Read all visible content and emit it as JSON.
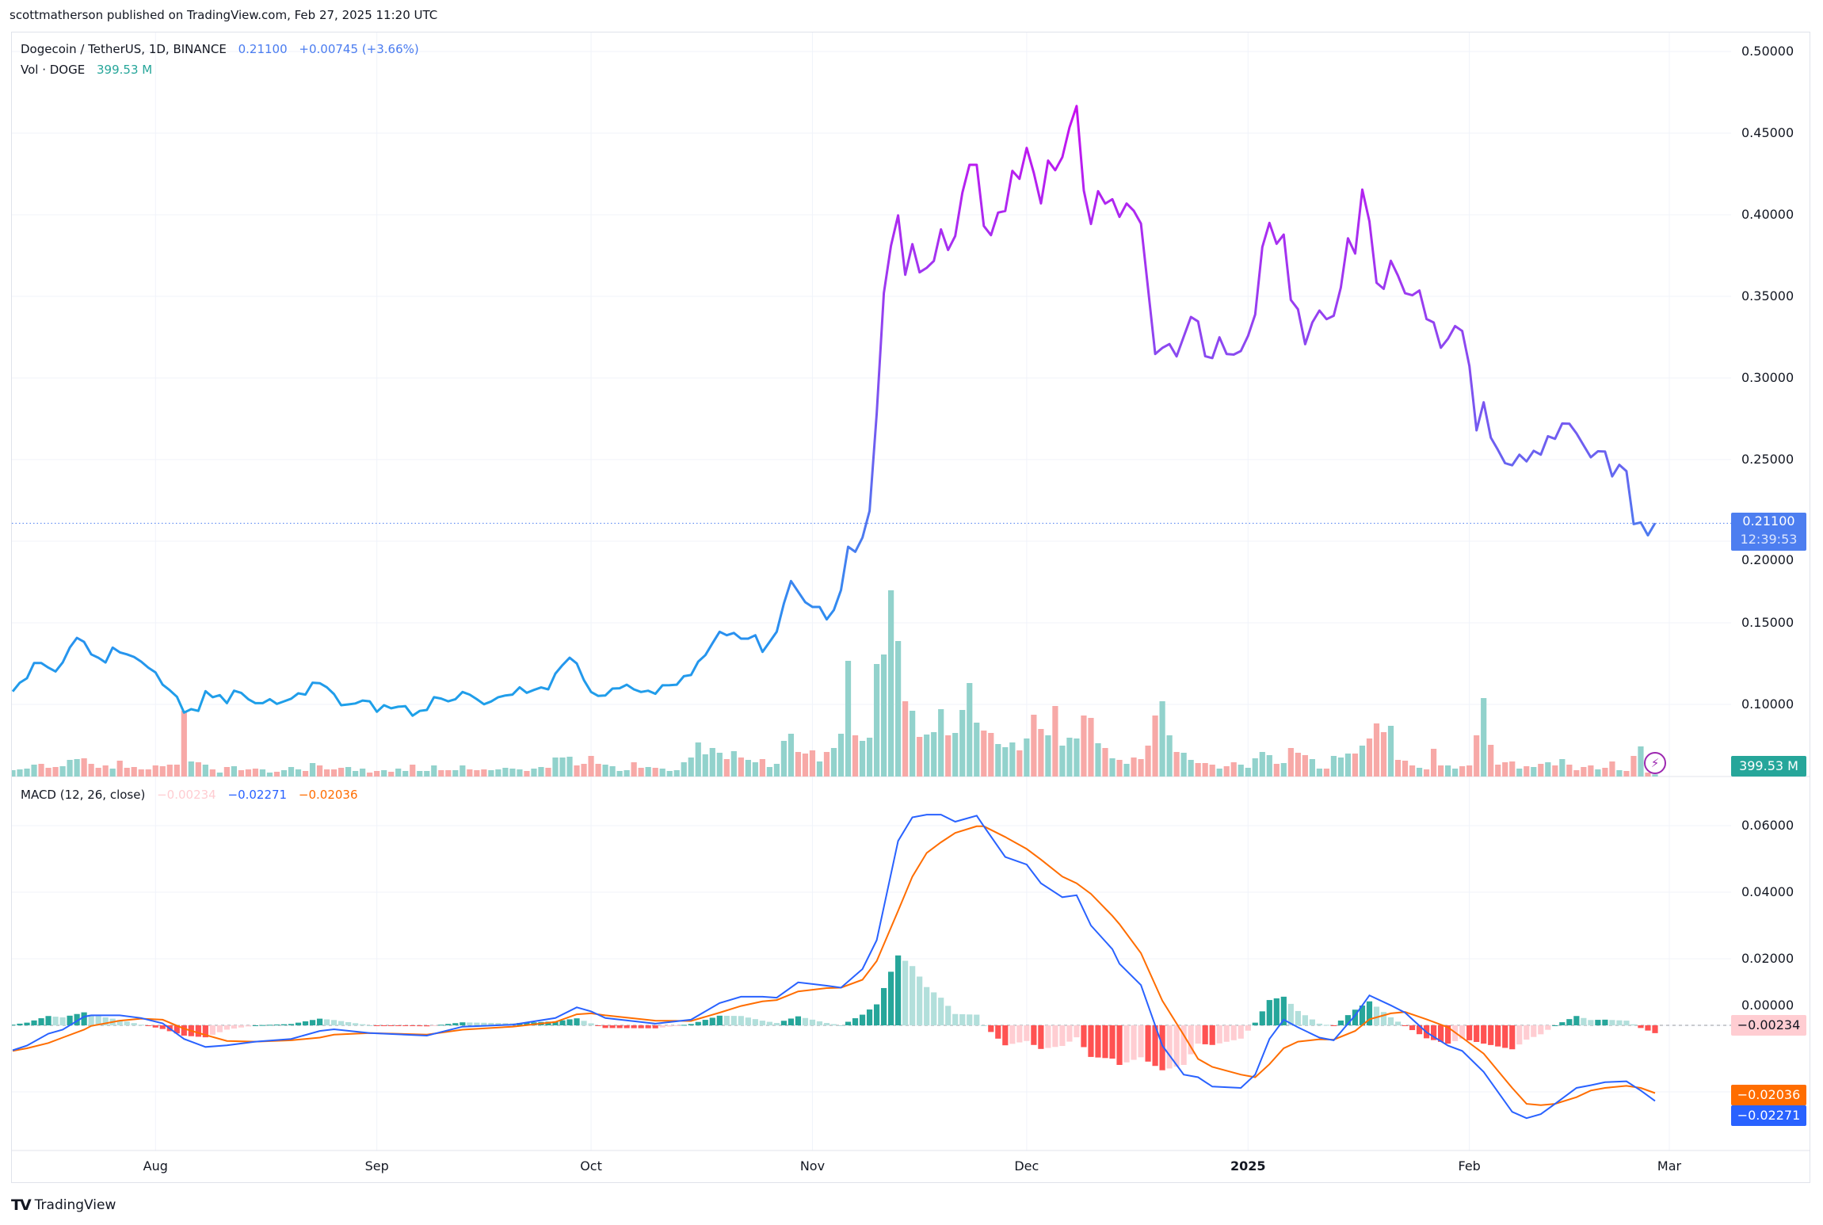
{
  "header": {
    "attribution": "scottmatherson published on TradingView.com, Feb 27, 2025 11:20 UTC"
  },
  "legend": {
    "symbol": "Dogecoin / TetherUS, 1D, BINANCE",
    "price": "0.21100",
    "change": "+0.00745 (+3.66%)",
    "vol_label": "Vol · DOGE",
    "vol_value": "399.53 M"
  },
  "macd_legend": {
    "title": "MACD (12, 26, close)",
    "histogram": "−0.00234",
    "macd": "−0.02271",
    "signal": "−0.02036"
  },
  "price_axis": {
    "labels": [
      "0.50000",
      "0.45000",
      "0.40000",
      "0.35000",
      "0.30000",
      "0.25000",
      "0.20000",
      "0.15000",
      "0.10000"
    ],
    "current_price": "0.21100",
    "countdown": "12:39:53",
    "volume_badge": "399.53 M"
  },
  "macd_axis": {
    "labels": [
      "0.06000",
      "0.04000",
      "0.02000",
      "0.00000"
    ],
    "histogram_badge": "−0.00234",
    "signal_badge": "−0.02036",
    "macd_badge": "−0.02271"
  },
  "time_axis": [
    {
      "label": "Aug",
      "date": "2024-08-01"
    },
    {
      "label": "Sep",
      "date": "2024-09-01"
    },
    {
      "label": "Oct",
      "date": "2024-10-01"
    },
    {
      "label": "Nov",
      "date": "2024-11-01"
    },
    {
      "label": "Dec",
      "date": "2024-12-01"
    },
    {
      "label": "2025",
      "date": "2025-01-01"
    },
    {
      "label": "Feb",
      "date": "2025-02-01"
    },
    {
      "label": "Mar",
      "date": "2025-03-01"
    }
  ],
  "footer": {
    "brand": "TradingView",
    "alert_icon": "lightning-icon"
  },
  "colors": {
    "price_low": "#1da1e8",
    "price_mid": "#4a7cf0",
    "price_high": "#c70ff0",
    "volume_up": "#92d2cc",
    "volume_down": "#f7a9a7",
    "macd": "#2962ff",
    "signal": "#ff6d00",
    "hist_up_strong": "#26a69a",
    "hist_up_weak": "#b2dfdb",
    "hist_down_strong": "#ff5252",
    "hist_down_weak": "#ffcdd2"
  },
  "chart_data": [
    {
      "type": "line",
      "series": "price",
      "date_range": [
        "2024-07-12",
        "2025-02-27"
      ],
      "ylim": [
        0.07,
        0.51
      ],
      "grid": true,
      "values": [
        0.1079,
        0.1133,
        0.116,
        0.1254,
        0.1254,
        0.1225,
        0.1202,
        0.1257,
        0.1348,
        0.1408,
        0.1383,
        0.1307,
        0.1286,
        0.1257,
        0.1348,
        0.1319,
        0.1307,
        0.1291,
        0.1262,
        0.1225,
        0.1196,
        0.1121,
        0.1087,
        0.1047,
        0.095,
        0.0971,
        0.096,
        0.1081,
        0.1044,
        0.1057,
        0.1008,
        0.1084,
        0.1071,
        0.1032,
        0.1008,
        0.1008,
        0.1032,
        0.1003,
        0.1019,
        0.1035,
        0.1068,
        0.106,
        0.1133,
        0.113,
        0.1105,
        0.1063,
        0.0995,
        0.1,
        0.1006,
        0.1024,
        0.1019,
        0.0955,
        0.0995,
        0.0976,
        0.0986,
        0.0989,
        0.0931,
        0.096,
        0.0966,
        0.1044,
        0.1036,
        0.1019,
        0.1032,
        0.1076,
        0.106,
        0.1032,
        0.1001,
        0.1018,
        0.1044,
        0.1055,
        0.106,
        0.1105,
        0.1071,
        0.1089,
        0.1104,
        0.1092,
        0.1189,
        0.1241,
        0.1286,
        0.1251,
        0.1149,
        0.1076,
        0.1052,
        0.1055,
        0.1097,
        0.1099,
        0.1121,
        0.1092,
        0.1076,
        0.1084,
        0.1065,
        0.1117,
        0.1118,
        0.1121,
        0.1173,
        0.118,
        0.1262,
        0.1302,
        0.1375,
        0.1445,
        0.1424,
        0.1438,
        0.1403,
        0.1403,
        0.1424,
        0.1322,
        0.1383,
        0.1445,
        0.1618,
        0.1756,
        0.1691,
        0.1626,
        0.1597,
        0.1597,
        0.1521,
        0.1578,
        0.17,
        0.1966,
        0.1935,
        0.2022,
        0.2186,
        0.2783,
        0.352,
        0.381,
        0.3996,
        0.3632,
        0.382,
        0.3647,
        0.3675,
        0.3717,
        0.391,
        0.3784,
        0.387,
        0.4135,
        0.4306,
        0.4306,
        0.3931,
        0.3875,
        0.4013,
        0.4023,
        0.4269,
        0.422,
        0.4409,
        0.4256,
        0.4069,
        0.4332,
        0.4273,
        0.4353,
        0.4535,
        0.4666,
        0.4148,
        0.3943,
        0.4144,
        0.4068,
        0.4095,
        0.3987,
        0.4069,
        0.4025,
        0.3946,
        0.3547,
        0.3147,
        0.3184,
        0.3208,
        0.3132,
        0.3253,
        0.3374,
        0.3346,
        0.3133,
        0.3122,
        0.3249,
        0.3147,
        0.3143,
        0.3165,
        0.3258,
        0.3389,
        0.3802,
        0.395,
        0.3822,
        0.3878,
        0.3478,
        0.3421,
        0.3207,
        0.334,
        0.3413,
        0.336,
        0.3381,
        0.3554,
        0.3856,
        0.3762,
        0.4154,
        0.3959,
        0.3583,
        0.3546,
        0.3718,
        0.3627,
        0.3519,
        0.3507,
        0.3536,
        0.3361,
        0.334,
        0.3185,
        0.324,
        0.3318,
        0.3288,
        0.3073,
        0.2679,
        0.2851,
        0.2635,
        0.2559,
        0.2478,
        0.2465,
        0.253,
        0.2489,
        0.2554,
        0.253,
        0.2643,
        0.2627,
        0.2721,
        0.272,
        0.266,
        0.2587,
        0.2514,
        0.2551,
        0.2549,
        0.2397,
        0.2468,
        0.2429,
        0.2105,
        0.2115,
        0.2036,
        0.211
      ]
    },
    {
      "type": "bar",
      "series": "volume",
      "unit": "M",
      "values": [
        1200,
        1350,
        1500,
        2250,
        2400,
        1650,
        1800,
        1950,
        3150,
        3300,
        3450,
        2400,
        1650,
        2100,
        1500,
        3000,
        1650,
        1800,
        1350,
        1350,
        2100,
        1950,
        2250,
        2250,
        12450,
        2850,
        2700,
        2250,
        1350,
        750,
        1800,
        1950,
        1200,
        1350,
        1500,
        1350,
        750,
        900,
        1200,
        1800,
        1350,
        1050,
        2550,
        2100,
        1350,
        1350,
        1650,
        1800,
        1050,
        1500,
        750,
        1050,
        1200,
        900,
        1500,
        1050,
        2250,
        1050,
        1050,
        2100,
        1200,
        1200,
        1200,
        2100,
        1350,
        1200,
        1350,
        1200,
        1350,
        1650,
        1500,
        1350,
        1050,
        1500,
        1800,
        1650,
        3600,
        3600,
        3750,
        2100,
        2400,
        3900,
        2400,
        2250,
        1950,
        1050,
        1200,
        2700,
        1650,
        1800,
        1650,
        1500,
        1050,
        1200,
        2700,
        3600,
        6450,
        4200,
        5400,
        4500,
        3300,
        4800,
        3600,
        3150,
        2700,
        3300,
        1800,
        2400,
        6750,
        8100,
        4650,
        4350,
        4950,
        2850,
        4650,
        5400,
        8100,
        21900,
        7800,
        6750,
        7350,
        21300,
        23100,
        35250,
        25650,
        14250,
        12450,
        7500,
        7950,
        8400,
        12750,
        7800,
        8250,
        12600,
        17700,
        10200,
        8700,
        8250,
        6150,
        5550,
        6450,
        4950,
        7200,
        11700,
        9000,
        7800,
        13350,
        5850,
        7350,
        7200,
        11550,
        11100,
        6300,
        5400,
        3450,
        3150,
        2400,
        3600,
        3300,
        5850,
        11550,
        14250,
        7800,
        4650,
        4500,
        3150,
        2550,
        2550,
        2250,
        1500,
        1950,
        2700,
        2250,
        1650,
        3450,
        4650,
        4050,
        2400,
        2550,
        5400,
        4500,
        4050,
        3300,
        1500,
        1500,
        3900,
        3600,
        4350,
        4350,
        5850,
        7200,
        10050,
        8400,
        9600,
        3150,
        3000,
        2100,
        1650,
        1350,
        5250,
        2100,
        2100,
        1500,
        1950,
        2100,
        7800,
        14850,
        6000,
        2250,
        2700,
        2850,
        1500,
        1950,
        1800,
        2400,
        2700,
        2100,
        3300,
        2250,
        1200,
        1800,
        2100,
        1350,
        1650,
        2850,
        1200,
        1050,
        3900,
        5700,
        750,
        399.53
      ],
      "direction": [
        "up",
        "up",
        "up",
        "up",
        "down",
        "down",
        "down",
        "up",
        "up",
        "up",
        "down",
        "down",
        "down",
        "down",
        "up",
        "down",
        "down",
        "down",
        "down",
        "down",
        "down",
        "down",
        "down",
        "down",
        "down",
        "up",
        "down",
        "up",
        "down",
        "up",
        "down",
        "up",
        "down",
        "down",
        "down",
        "up",
        "up",
        "down",
        "up",
        "up",
        "up",
        "down",
        "up",
        "down",
        "down",
        "down",
        "down",
        "up",
        "up",
        "up",
        "down",
        "down",
        "up",
        "down",
        "up",
        "up",
        "down",
        "up",
        "up",
        "up",
        "down",
        "down",
        "up",
        "up",
        "down",
        "down",
        "down",
        "up",
        "up",
        "up",
        "up",
        "up",
        "down",
        "up",
        "up",
        "down",
        "up",
        "up",
        "up",
        "down",
        "down",
        "down",
        "down",
        "up",
        "up",
        "up",
        "up",
        "down",
        "down",
        "up",
        "down",
        "up",
        "up",
        "up",
        "up",
        "up",
        "up",
        "up",
        "up",
        "up",
        "down",
        "up",
        "down",
        "up",
        "up",
        "down",
        "up",
        "up",
        "up",
        "up",
        "down",
        "down",
        "down",
        "up",
        "down",
        "up",
        "up",
        "up",
        "down",
        "up",
        "up",
        "up",
        "up",
        "up",
        "up",
        "down",
        "up",
        "down",
        "up",
        "up",
        "up",
        "down",
        "up",
        "up",
        "up",
        "up",
        "down",
        "down",
        "up",
        "up",
        "up",
        "down",
        "up",
        "down",
        "down",
        "up",
        "down",
        "up",
        "up",
        "up",
        "down",
        "down",
        "up",
        "down",
        "up",
        "down",
        "up",
        "down",
        "down",
        "down",
        "down",
        "up",
        "up",
        "down",
        "up",
        "up",
        "down",
        "down",
        "down",
        "up",
        "down",
        "down",
        "up",
        "up",
        "up",
        "up",
        "up",
        "down",
        "up",
        "down",
        "down",
        "down",
        "up",
        "up",
        "down",
        "up",
        "up",
        "up",
        "down",
        "up",
        "down",
        "down",
        "down",
        "up",
        "down",
        "down",
        "down",
        "up",
        "down",
        "down",
        "down",
        "up",
        "up",
        "down",
        "down",
        "down",
        "up",
        "down",
        "down",
        "down",
        "down",
        "up",
        "down",
        "up",
        "down",
        "up",
        "down",
        "up",
        "down",
        "down",
        "down",
        "down",
        "up",
        "down",
        "down",
        "up",
        "down",
        "down",
        "up",
        "down",
        "up"
      ]
    },
    {
      "type": "line",
      "series": "MACD (12, 26, close)",
      "ylim": [
        -0.035,
        0.07
      ],
      "columns": [
        "date",
        "macd",
        "signal"
      ],
      "samples": [
        [
          "2024-07-12",
          -0.0075,
          -0.0077
        ],
        [
          "2024-07-14",
          -0.0061,
          -0.0069
        ],
        [
          "2024-07-17",
          -0.0025,
          -0.0053
        ],
        [
          "2024-07-19",
          -0.0013,
          -0.0037
        ],
        [
          "2024-07-22",
          0.0026,
          -0.0013
        ],
        [
          "2024-07-23",
          0.003,
          -0.0002
        ],
        [
          "2024-07-27",
          0.003,
          0.0014
        ],
        [
          "2024-07-30",
          0.0022,
          0.002
        ],
        [
          "2024-08-02",
          0.0006,
          0.0017
        ],
        [
          "2024-08-05",
          -0.0041,
          -0.001
        ],
        [
          "2024-08-08",
          -0.0065,
          -0.0029
        ],
        [
          "2024-08-11",
          -0.006,
          -0.0047
        ],
        [
          "2024-08-15",
          -0.0049,
          -0.0049
        ],
        [
          "2024-08-20",
          -0.0041,
          -0.0045
        ],
        [
          "2024-08-24",
          -0.0017,
          -0.0037
        ],
        [
          "2024-08-26",
          -0.0012,
          -0.0028
        ],
        [
          "2024-08-31",
          -0.0023,
          -0.0023
        ],
        [
          "2024-09-08",
          -0.0031,
          -0.0028
        ],
        [
          "2024-09-13",
          -0.0004,
          -0.0013
        ],
        [
          "2024-09-20",
          0.0002,
          -0.0004
        ],
        [
          "2024-09-26",
          0.0022,
          0.001
        ],
        [
          "2024-09-29",
          0.0054,
          0.0033
        ],
        [
          "2024-10-01",
          0.0042,
          0.0036
        ],
        [
          "2024-10-03",
          0.0022,
          0.003
        ],
        [
          "2024-10-10",
          0.0005,
          0.0014
        ],
        [
          "2024-10-15",
          0.0017,
          0.0013
        ],
        [
          "2024-10-19",
          0.0067,
          0.0038
        ],
        [
          "2024-10-22",
          0.0086,
          0.0058
        ],
        [
          "2024-10-25",
          0.0086,
          0.0072
        ],
        [
          "2024-10-27",
          0.0083,
          0.0076
        ],
        [
          "2024-10-30",
          0.0129,
          0.0102
        ],
        [
          "2024-11-03",
          0.0119,
          0.0112
        ],
        [
          "2024-11-05",
          0.0113,
          0.0113
        ],
        [
          "2024-11-08",
          0.0169,
          0.0137
        ],
        [
          "2024-11-10",
          0.0256,
          0.0193
        ],
        [
          "2024-11-13",
          0.0554,
          0.0344
        ],
        [
          "2024-11-15",
          0.0625,
          0.0447
        ],
        [
          "2024-11-17",
          0.0633,
          0.0518
        ],
        [
          "2024-11-19",
          0.0633,
          0.055
        ],
        [
          "2024-11-21",
          0.0612,
          0.0578
        ],
        [
          "2024-11-24",
          0.063,
          0.0598
        ],
        [
          "2024-11-25",
          0.0598,
          0.0598
        ],
        [
          "2024-11-28",
          0.0506,
          0.0566
        ],
        [
          "2024-12-01",
          0.0483,
          0.053
        ],
        [
          "2024-12-03",
          0.0427,
          0.0498
        ],
        [
          "2024-12-06",
          0.0385,
          0.0447
        ],
        [
          "2024-12-08",
          0.0391,
          0.0427
        ],
        [
          "2024-12-10",
          0.03,
          0.0395
        ],
        [
          "2024-12-13",
          0.0229,
          0.0329
        ],
        [
          "2024-12-14",
          0.0185,
          0.0304
        ],
        [
          "2024-12-17",
          0.0121,
          0.0217
        ],
        [
          "2024-12-20",
          -0.0061,
          0.0074
        ],
        [
          "2024-12-23",
          -0.0148,
          -0.0029
        ],
        [
          "2024-12-25",
          -0.0156,
          -0.0101
        ],
        [
          "2024-12-27",
          -0.0184,
          -0.0125
        ],
        [
          "2024-12-31",
          -0.0188,
          -0.0148
        ],
        [
          "2025-01-02",
          -0.0148,
          -0.0156
        ],
        [
          "2025-01-04",
          -0.0041,
          -0.0117
        ],
        [
          "2025-01-06",
          0.0017,
          -0.0069
        ],
        [
          "2025-01-08",
          -0.0006,
          -0.0049
        ],
        [
          "2025-01-11",
          -0.0037,
          -0.0042
        ],
        [
          "2025-01-13",
          -0.0045,
          -0.0043
        ],
        [
          "2025-01-16",
          0.003,
          -0.0017
        ],
        [
          "2025-01-18",
          0.009,
          0.0018
        ],
        [
          "2025-01-21",
          0.006,
          0.0036
        ],
        [
          "2025-01-23",
          0.0038,
          0.004
        ],
        [
          "2025-01-26",
          -0.0021,
          0.0018
        ],
        [
          "2025-01-29",
          -0.0061,
          -0.0006
        ],
        [
          "2025-01-31",
          -0.0077,
          -0.0037
        ],
        [
          "2025-02-03",
          -0.014,
          -0.0085
        ],
        [
          "2025-02-07",
          -0.026,
          -0.0188
        ],
        [
          "2025-02-09",
          -0.0279,
          -0.0236
        ],
        [
          "2025-02-11",
          -0.0267,
          -0.024
        ],
        [
          "2025-02-13",
          -0.0236,
          -0.0236
        ],
        [
          "2025-02-16",
          -0.0188,
          -0.0216
        ],
        [
          "2025-02-18",
          -0.018,
          -0.0196
        ],
        [
          "2025-02-20",
          -0.0171,
          -0.0188
        ],
        [
          "2025-02-23",
          -0.0168,
          -0.0182
        ],
        [
          "2025-02-25",
          -0.0196,
          -0.0188
        ],
        [
          "2025-02-27",
          -0.02271,
          -0.02036
        ]
      ]
    }
  ]
}
